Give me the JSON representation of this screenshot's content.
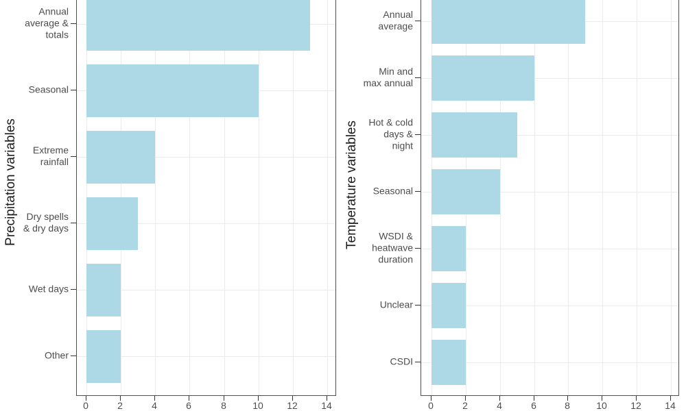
{
  "figure": {
    "background_color": "#ffffff",
    "panel_border_color": "#4d4d4d",
    "gridline_color": "#ebebeb",
    "axis_text_color": "#4d4d4d",
    "axis_title_color": "#1a1a1a",
    "tick_mark_color": "#333333"
  },
  "chart_data": [
    {
      "type": "bar",
      "orientation": "horizontal",
      "title": "",
      "xlabel": "",
      "ylabel": "Precipitation variables",
      "categories": [
        "Annual\naverage &\ntotals",
        "Seasonal",
        "Extreme\nrainfall",
        "Dry spells\n& dry days",
        "Wet days",
        "Other"
      ],
      "values": [
        13,
        10,
        4,
        3,
        2,
        2
      ],
      "x_ticks": [
        0,
        2,
        4,
        6,
        8,
        10,
        12,
        14
      ],
      "xlim": [
        0,
        14.6
      ],
      "bar_color": "#ADD8E6",
      "grid": "major-on",
      "legend": "none"
    },
    {
      "type": "bar",
      "orientation": "horizontal",
      "title": "",
      "xlabel": "",
      "ylabel": "Temperature variables",
      "categories": [
        "Annual\naverage",
        "Min and\nmax annual",
        "Hot & cold\ndays &\nnight",
        "Seasonal",
        "WSDI &\nheatwave\nduration",
        "Unclear",
        "CSDI"
      ],
      "values": [
        9,
        6,
        5,
        4,
        2,
        2,
        2
      ],
      "x_ticks": [
        0,
        2,
        4,
        6,
        8,
        10,
        12,
        14
      ],
      "xlim": [
        0,
        14.6
      ],
      "bar_color": "#ADD8E6",
      "grid": "major-on",
      "legend": "none"
    }
  ]
}
